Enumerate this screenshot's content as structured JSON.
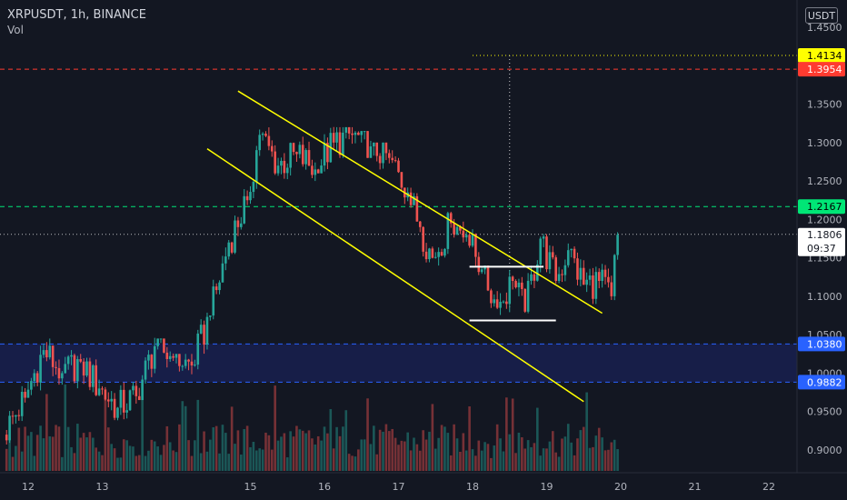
{
  "header": {
    "title": "XRPUSDT, 1h, BINANCE",
    "volume_label": "Vol"
  },
  "currency_button": "USDT",
  "colors": {
    "background": "#131722",
    "up": "#26a69a",
    "down": "#ef5350",
    "channel": "#ffff00",
    "resistance_red": "#ff3b30",
    "level_green": "#00e676",
    "support_blue": "#2962ff",
    "support_zone": "#1a2255"
  },
  "chart_data": {
    "type": "candlestick",
    "symbol": "XRPUSDT",
    "timeframe": "1h",
    "exchange": "BINANCE",
    "x_axis": {
      "labels": [
        "12",
        "13",
        "15",
        "16",
        "17",
        "18",
        "19",
        "20",
        "21",
        "22"
      ]
    },
    "y_axis": {
      "labels": [
        "1.4500",
        "1.4000",
        "1.3500",
        "1.3000",
        "1.2500",
        "1.2000",
        "1.1500",
        "1.1000",
        "1.0500",
        "1.0000",
        "0.9500",
        "0.9000"
      ],
      "range": [
        0.88,
        1.48
      ]
    },
    "price_tags": [
      {
        "id": "target",
        "value": "1.4134",
        "price": 1.4134,
        "color": "#ffff00",
        "text_color": "#000000",
        "style": "dotted"
      },
      {
        "id": "resistance",
        "value": "1.3954",
        "price": 1.3954,
        "color": "#ff3b30",
        "text_color": "#ffffff",
        "style": "dashed"
      },
      {
        "id": "level",
        "value": "1.2167",
        "price": 1.2167,
        "color": "#00e676",
        "text_color": "#000000",
        "style": "dashed"
      },
      {
        "id": "last",
        "value": "1.1806",
        "countdown": "09:37",
        "price": 1.1806,
        "color": "#ffffff",
        "text_color": "#131722",
        "style": "dotted"
      },
      {
        "id": "support-top",
        "value": "1.0380",
        "price": 1.038,
        "color": "#2962ff",
        "text_color": "#ffffff",
        "style": "dashed"
      },
      {
        "id": "support-bottom",
        "value": "0.9882",
        "price": 0.9882,
        "color": "#2962ff",
        "text_color": "#ffffff",
        "style": "dashed"
      }
    ],
    "support_zone": [
      0.9882,
      1.038
    ],
    "channel": {
      "upper": {
        "from": [
          "14 20:00",
          1.367
        ],
        "to": [
          "19 18:00",
          1.078
        ]
      },
      "lower": {
        "from": [
          "14 10:00",
          1.292
        ],
        "to": [
          "19 12:00",
          0.963
        ]
      }
    },
    "range_box": {
      "top": 1.1385,
      "bottom": 1.0685,
      "from": "17 23:00",
      "to": "19 03:00"
    },
    "candle_series": [
      {
        "t": "11 17:00",
        "o": 0.92,
        "h": 0.988,
        "l": 0.905,
        "c": 0.968
      },
      {
        "t": "12 00:00",
        "o": 0.968,
        "h": 1.055,
        "l": 0.955,
        "c": 1.03
      },
      {
        "t": "12 06:00",
        "o": 1.03,
        "h": 1.045,
        "l": 0.985,
        "c": 1.0
      },
      {
        "t": "12 12:00",
        "o": 1.0,
        "h": 1.03,
        "l": 0.97,
        "c": 1.015
      },
      {
        "t": "12 18:00",
        "o": 1.015,
        "h": 1.02,
        "l": 0.97,
        "c": 0.98
      },
      {
        "t": "13 00:00",
        "o": 0.98,
        "h": 0.985,
        "l": 0.925,
        "c": 0.955
      },
      {
        "t": "13 06:00",
        "o": 0.955,
        "h": 0.99,
        "l": 0.94,
        "c": 0.97
      },
      {
        "t": "13 12:00",
        "o": 0.97,
        "h": 1.05,
        "l": 0.965,
        "c": 1.035
      },
      {
        "t": "13 18:00",
        "o": 1.035,
        "h": 1.045,
        "l": 1.005,
        "c": 1.02
      },
      {
        "t": "14 00:00",
        "o": 1.02,
        "h": 1.025,
        "l": 0.995,
        "c": 1.01
      },
      {
        "t": "14 06:00",
        "o": 1.01,
        "h": 1.09,
        "l": 1.005,
        "c": 1.075
      },
      {
        "t": "14 12:00",
        "o": 1.075,
        "h": 1.2,
        "l": 1.07,
        "c": 1.17
      },
      {
        "t": "14 18:00",
        "o": 1.17,
        "h": 1.26,
        "l": 1.155,
        "c": 1.225
      },
      {
        "t": "15 00:00",
        "o": 1.225,
        "h": 1.35,
        "l": 1.2,
        "c": 1.31
      },
      {
        "t": "15 04:00",
        "o": 1.31,
        "h": 1.32,
        "l": 1.24,
        "c": 1.27
      },
      {
        "t": "15 10:00",
        "o": 1.27,
        "h": 1.3,
        "l": 1.245,
        "c": 1.285
      },
      {
        "t": "15 16:00",
        "o": 1.285,
        "h": 1.315,
        "l": 1.25,
        "c": 1.265
      },
      {
        "t": "15 22:00",
        "o": 1.265,
        "h": 1.33,
        "l": 1.26,
        "c": 1.3
      },
      {
        "t": "16 04:00",
        "o": 1.3,
        "h": 1.32,
        "l": 1.28,
        "c": 1.31
      },
      {
        "t": "16 10:00",
        "o": 1.31,
        "h": 1.315,
        "l": 1.28,
        "c": 1.295
      },
      {
        "t": "16 16:00",
        "o": 1.295,
        "h": 1.3,
        "l": 1.265,
        "c": 1.28
      },
      {
        "t": "16 22:00",
        "o": 1.28,
        "h": 1.29,
        "l": 1.22,
        "c": 1.235
      },
      {
        "t": "17 04:00",
        "o": 1.235,
        "h": 1.245,
        "l": 1.16,
        "c": 1.19
      },
      {
        "t": "17 08:00",
        "o": 1.19,
        "h": 1.215,
        "l": 1.12,
        "c": 1.15
      },
      {
        "t": "17 12:00",
        "o": 1.15,
        "h": 1.21,
        "l": 1.14,
        "c": 1.195
      },
      {
        "t": "17 18:00",
        "o": 1.195,
        "h": 1.205,
        "l": 1.17,
        "c": 1.18
      },
      {
        "t": "17 23:00",
        "o": 1.18,
        "h": 1.19,
        "l": 1.12,
        "c": 1.135
      },
      {
        "t": "18 04:00",
        "o": 1.135,
        "h": 1.14,
        "l": 1.05,
        "c": 1.085
      },
      {
        "t": "18 09:00",
        "o": 1.085,
        "h": 1.14,
        "l": 1.075,
        "c": 1.12
      },
      {
        "t": "18 14:00",
        "o": 1.12,
        "h": 1.125,
        "l": 1.06,
        "c": 1.08
      },
      {
        "t": "18 18:00",
        "o": 1.08,
        "h": 1.2,
        "l": 1.075,
        "c": 1.175
      },
      {
        "t": "18 23:00",
        "o": 1.175,
        "h": 1.19,
        "l": 1.1,
        "c": 1.12
      },
      {
        "t": "19 04:00",
        "o": 1.12,
        "h": 1.18,
        "l": 1.1,
        "c": 1.16
      },
      {
        "t": "19 08:00",
        "o": 1.16,
        "h": 1.165,
        "l": 1.1,
        "c": 1.115
      },
      {
        "t": "19 13:00",
        "o": 1.115,
        "h": 1.14,
        "l": 1.09,
        "c": 1.12
      },
      {
        "t": "19 18:00",
        "o": 1.12,
        "h": 1.15,
        "l": 1.085,
        "c": 1.1
      },
      {
        "t": "19 22:00",
        "o": 1.1,
        "h": 1.185,
        "l": 1.095,
        "c": 1.18
      }
    ]
  }
}
